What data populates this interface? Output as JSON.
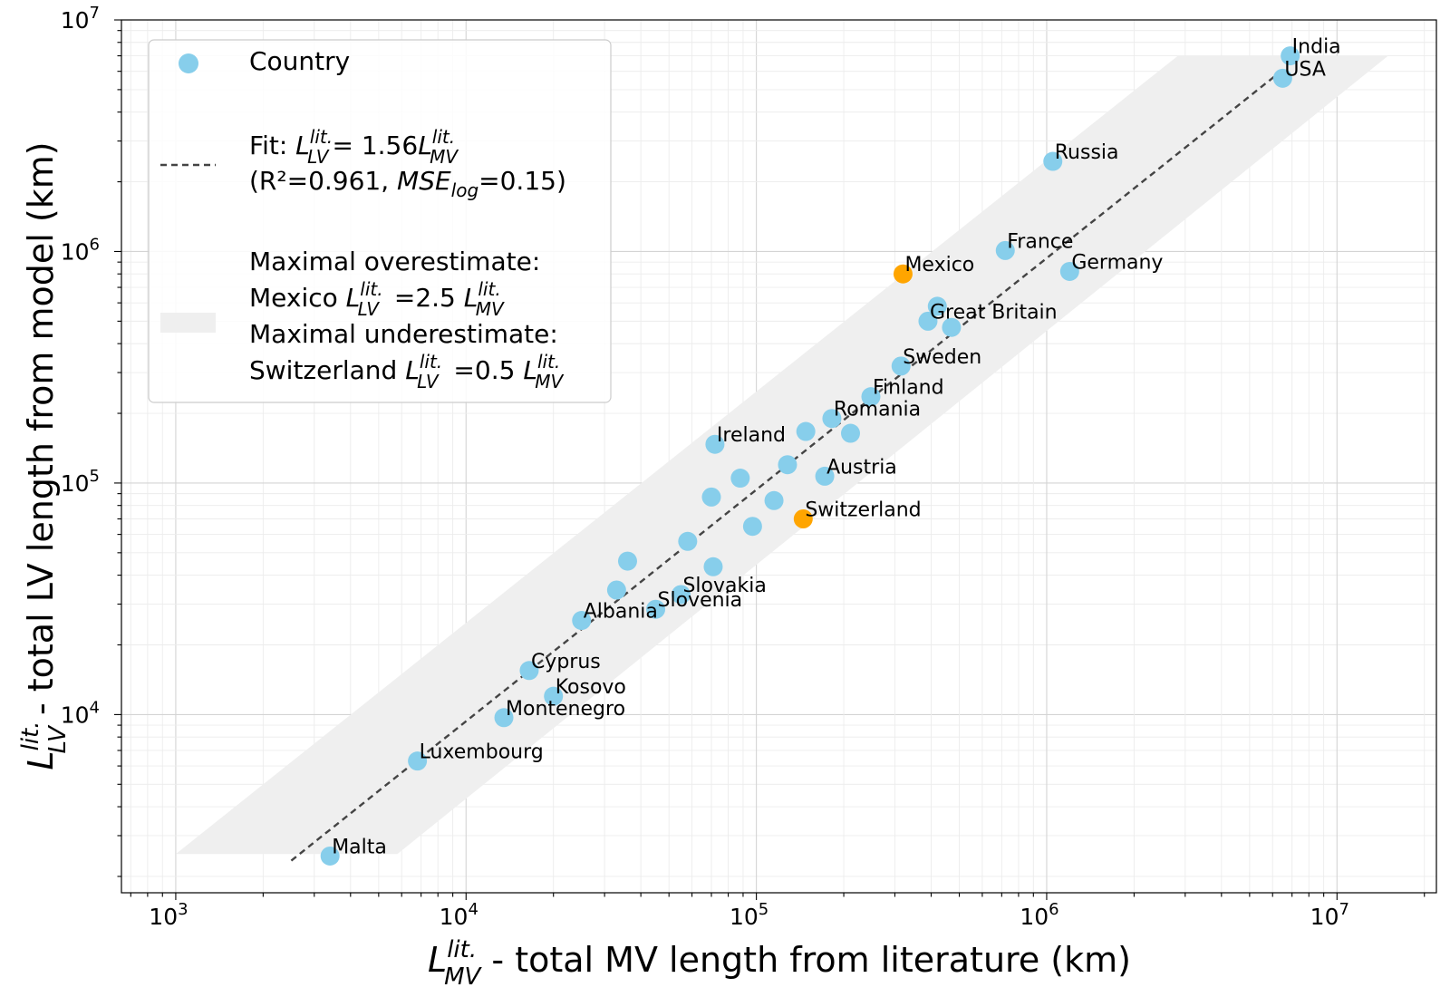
{
  "chart_data": {
    "type": "scatter",
    "x_scale": "log",
    "y_scale": "log",
    "xlim": [
      650,
      22000000
    ],
    "ylim": [
      1700,
      10000000
    ],
    "grid": true,
    "x_ticks": [
      {
        "value": 1000,
        "base": "10",
        "exp": "3"
      },
      {
        "value": 10000,
        "base": "10",
        "exp": "4"
      },
      {
        "value": 100000,
        "base": "10",
        "exp": "5"
      },
      {
        "value": 1000000,
        "base": "10",
        "exp": "6"
      },
      {
        "value": 10000000,
        "base": "10",
        "exp": "7"
      }
    ],
    "y_ticks": [
      {
        "value": 10000,
        "base": "10",
        "exp": "4"
      },
      {
        "value": 100000,
        "base": "10",
        "exp": "5"
      },
      {
        "value": 1000000,
        "base": "10",
        "exp": "6"
      },
      {
        "value": 10000000,
        "base": "10",
        "exp": "7"
      }
    ],
    "xlabel": {
      "symbol": "L",
      "sup": "lit.",
      "sub": "MV",
      "text": " - total MV length from literature (km)"
    },
    "ylabel": {
      "symbol": "L",
      "sup": "lit.",
      "sub": "LV",
      "text": " - total LV length from model (km)"
    },
    "fit": {
      "slope": 1.56,
      "x_range": [
        2500,
        6600000
      ]
    },
    "band": {
      "x_range": [
        1000,
        15000000
      ],
      "y_range": [
        2500,
        7000000
      ],
      "low_factor": 0.5,
      "high_factor": 2.5
    },
    "colors": {
      "country": "#87CEEB",
      "extreme": "#FFA500",
      "fit": "#444444",
      "band": "#EFEFEF",
      "grid": "#DDDDDD"
    },
    "points": [
      {
        "name": "India",
        "x": 6900000,
        "y": 7000000,
        "labeled": true
      },
      {
        "name": "USA",
        "x": 6500000,
        "y": 5600000,
        "labeled": true
      },
      {
        "name": "Russia",
        "x": 1050000,
        "y": 2450000,
        "labeled": true
      },
      {
        "name": "France",
        "x": 720000,
        "y": 1010000,
        "labeled": true
      },
      {
        "name": "Germany",
        "x": 1200000,
        "y": 820000,
        "labeled": true
      },
      {
        "name": "Mexico",
        "x": 320000,
        "y": 800000,
        "labeled": true,
        "highlight": true
      },
      {
        "name": "Great Britain",
        "x": 390000,
        "y": 500000,
        "labeled": true
      },
      {
        "name": "",
        "x": 420000,
        "y": 580000,
        "labeled": false
      },
      {
        "name": "",
        "x": 470000,
        "y": 470000,
        "labeled": false
      },
      {
        "name": "Sweden",
        "x": 315000,
        "y": 320000,
        "labeled": true
      },
      {
        "name": "Finland",
        "x": 248000,
        "y": 236000,
        "labeled": true
      },
      {
        "name": "Romania",
        "x": 182000,
        "y": 190000,
        "labeled": true
      },
      {
        "name": "",
        "x": 148000,
        "y": 167000,
        "labeled": false
      },
      {
        "name": "",
        "x": 211000,
        "y": 164000,
        "labeled": false
      },
      {
        "name": "Ireland",
        "x": 72000,
        "y": 147000,
        "labeled": true
      },
      {
        "name": "",
        "x": 128000,
        "y": 120000,
        "labeled": false
      },
      {
        "name": "Austria",
        "x": 172000,
        "y": 107000,
        "labeled": true
      },
      {
        "name": "",
        "x": 88000,
        "y": 105000,
        "labeled": false
      },
      {
        "name": "",
        "x": 70000,
        "y": 87000,
        "labeled": false
      },
      {
        "name": "",
        "x": 115000,
        "y": 84000,
        "labeled": false
      },
      {
        "name": "Switzerland",
        "x": 145000,
        "y": 70000,
        "labeled": true,
        "highlight": true
      },
      {
        "name": "",
        "x": 97000,
        "y": 65000,
        "labeled": false
      },
      {
        "name": "",
        "x": 58000,
        "y": 56000,
        "labeled": false
      },
      {
        "name": "",
        "x": 36000,
        "y": 46000,
        "labeled": false
      },
      {
        "name": "",
        "x": 71000,
        "y": 43500,
        "labeled": false
      },
      {
        "name": "",
        "x": 33000,
        "y": 34500,
        "labeled": false
      },
      {
        "name": "Slovakia",
        "x": 55000,
        "y": 33000,
        "labeled": true
      },
      {
        "name": "Slovenia",
        "x": 45000,
        "y": 28500,
        "labeled": true
      },
      {
        "name": "Albania",
        "x": 25000,
        "y": 25500,
        "labeled": true
      },
      {
        "name": "Cyprus",
        "x": 16500,
        "y": 15500,
        "labeled": true
      },
      {
        "name": "Kosovo",
        "x": 20000,
        "y": 12000,
        "labeled": true
      },
      {
        "name": "Montenegro",
        "x": 13500,
        "y": 9700,
        "labeled": true
      },
      {
        "name": "Luxembourg",
        "x": 6800,
        "y": 6300,
        "labeled": true
      },
      {
        "name": "Malta",
        "x": 3400,
        "y": 2450,
        "labeled": true
      }
    ]
  },
  "legend": {
    "country": "Country",
    "fit_prefix": "Fit: ",
    "fit_eq": "= 1.56",
    "fit_stats_open": "(R²=0.961, ",
    "fit_mse": "MSE",
    "fit_mse_sub": "log",
    "fit_stats_close": "=0.15)",
    "over_title": "Maximal overestimate:",
    "over_country": "Mexico ",
    "over_eq": " =2.5 ",
    "under_title": "Maximal underestimate:",
    "under_country": "Switzerland ",
    "under_eq": " =0.5 ",
    "sym": "L",
    "sup": "lit.",
    "sub_lv": "LV",
    "sub_mv": "MV"
  }
}
